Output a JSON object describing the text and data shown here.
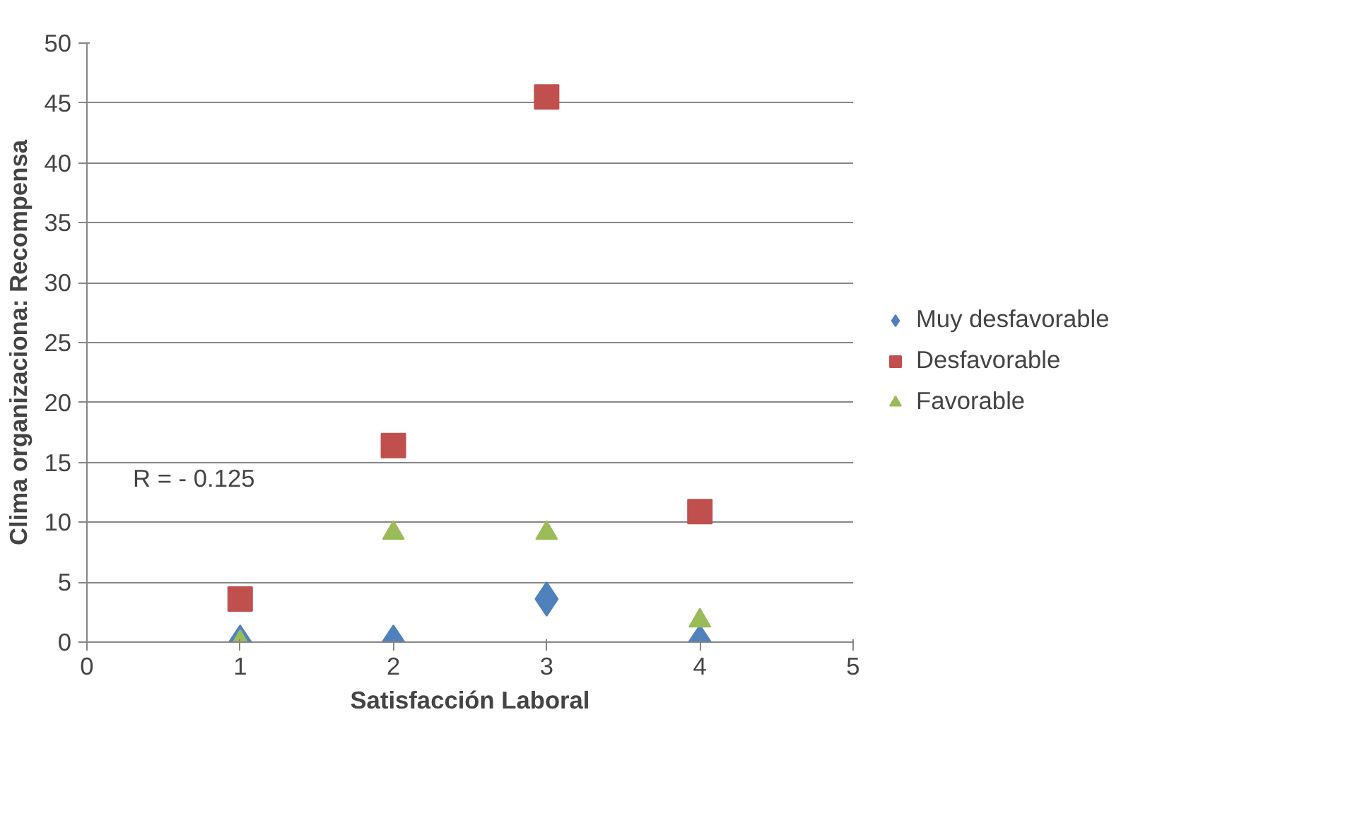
{
  "chart_data": {
    "type": "scatter",
    "xlabel": "Satisfacción Laboral",
    "ylabel": "Clima organizaciona: Recompensa",
    "x": [
      1,
      2,
      3,
      4
    ],
    "series": [
      {
        "name": "Muy desfavorable",
        "color": "#4f81bd",
        "marker": "diamond",
        "values": [
          0,
          0,
          3.6,
          0
        ]
      },
      {
        "name": "Desfavorable",
        "color": "#c0504d",
        "marker": "square",
        "values": [
          3.6,
          16.4,
          45.5,
          10.9
        ]
      },
      {
        "name": "Favorable",
        "color": "#9bbb59",
        "marker": "triangle",
        "values": [
          0,
          9.1,
          9.1,
          1.8
        ]
      }
    ],
    "xlim": [
      0,
      5
    ],
    "xticks": [
      0,
      1,
      2,
      3,
      4,
      5
    ],
    "ylim": [
      0,
      50
    ],
    "yticks": [
      0,
      5,
      10,
      15,
      20,
      25,
      30,
      35,
      40,
      45,
      50
    ],
    "grid": "y",
    "legend": "right",
    "annotations": [
      "R = - 0.125"
    ]
  }
}
